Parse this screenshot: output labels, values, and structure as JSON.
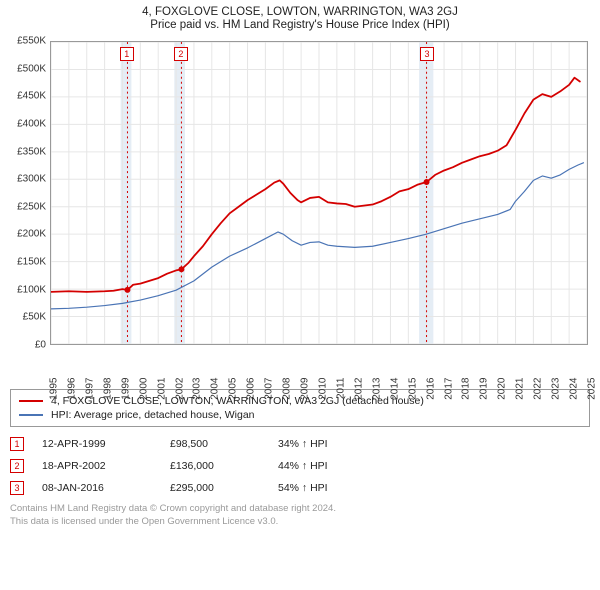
{
  "title_line1": "4, FOXGLOVE CLOSE, LOWTON, WARRINGTON, WA3 2GJ",
  "title_line2": "Price paid vs. HM Land Registry's House Price Index (HPI)",
  "chart": {
    "type": "line",
    "x_min": 1995,
    "x_max": 2025,
    "y_min": 0,
    "y_max": 550,
    "y_unit_prefix": "£",
    "y_unit_suffix": "K",
    "y_ticks": [
      0,
      50,
      100,
      150,
      200,
      250,
      300,
      350,
      400,
      450,
      500,
      550
    ],
    "x_ticks": [
      1995,
      1996,
      1997,
      1998,
      1999,
      2000,
      2001,
      2002,
      2003,
      2004,
      2005,
      2006,
      2007,
      2008,
      2009,
      2010,
      2011,
      2012,
      2013,
      2014,
      2015,
      2016,
      2017,
      2018,
      2019,
      2020,
      2021,
      2022,
      2023,
      2024,
      2025
    ],
    "background_color": "#ffffff",
    "grid_color": "#e6e6e6",
    "axis_color": "#999999",
    "tick_fontsize": 10,
    "vbands": [
      {
        "from": 1998.9,
        "to": 1999.5,
        "fill": "#e5edf5"
      },
      {
        "from": 2001.9,
        "to": 2002.5,
        "fill": "#e5edf5"
      },
      {
        "from": 2015.6,
        "to": 2016.4,
        "fill": "#e5edf5"
      }
    ],
    "vlines": [
      {
        "x": 1999.28,
        "color": "#d40000",
        "dash": "2,3"
      },
      {
        "x": 2002.3,
        "color": "#d40000",
        "dash": "2,3"
      },
      {
        "x": 2016.02,
        "color": "#d40000",
        "dash": "2,3"
      }
    ],
    "markers": [
      {
        "label": "1",
        "x": 1999.28,
        "color": "#d40000"
      },
      {
        "label": "2",
        "x": 2002.3,
        "color": "#d40000"
      },
      {
        "label": "3",
        "x": 2016.02,
        "color": "#d40000"
      }
    ],
    "series": [
      {
        "name": "price_paid",
        "color": "#d40000",
        "width": 1.8,
        "points": [
          [
            1995,
            95
          ],
          [
            1996,
            96
          ],
          [
            1997,
            95
          ],
          [
            1998,
            96
          ],
          [
            1998.5,
            97
          ],
          [
            1999.0,
            100
          ],
          [
            1999.28,
            98.5
          ],
          [
            1999.6,
            108
          ],
          [
            2000,
            110
          ],
          [
            2000.5,
            115
          ],
          [
            2001,
            120
          ],
          [
            2001.5,
            128
          ],
          [
            2002,
            134
          ],
          [
            2002.3,
            136
          ],
          [
            2002.7,
            148
          ],
          [
            2003,
            160
          ],
          [
            2003.5,
            178
          ],
          [
            2004,
            200
          ],
          [
            2004.5,
            220
          ],
          [
            2005,
            238
          ],
          [
            2005.5,
            250
          ],
          [
            2006,
            262
          ],
          [
            2006.5,
            272
          ],
          [
            2007,
            282
          ],
          [
            2007.5,
            294
          ],
          [
            2007.8,
            298
          ],
          [
            2008,
            292
          ],
          [
            2008.4,
            275
          ],
          [
            2008.8,
            262
          ],
          [
            2009,
            258
          ],
          [
            2009.5,
            266
          ],
          [
            2010,
            268
          ],
          [
            2010.5,
            258
          ],
          [
            2011,
            256
          ],
          [
            2011.5,
            255
          ],
          [
            2012,
            250
          ],
          [
            2012.5,
            252
          ],
          [
            2013,
            254
          ],
          [
            2013.5,
            260
          ],
          [
            2014,
            268
          ],
          [
            2014.5,
            278
          ],
          [
            2015,
            282
          ],
          [
            2015.5,
            290
          ],
          [
            2016.02,
            295
          ],
          [
            2016.5,
            308
          ],
          [
            2017,
            316
          ],
          [
            2017.5,
            322
          ],
          [
            2018,
            330
          ],
          [
            2018.5,
            336
          ],
          [
            2019,
            342
          ],
          [
            2019.5,
            346
          ],
          [
            2020,
            352
          ],
          [
            2020.5,
            362
          ],
          [
            2021,
            390
          ],
          [
            2021.5,
            420
          ],
          [
            2022,
            445
          ],
          [
            2022.5,
            455
          ],
          [
            2023,
            450
          ],
          [
            2023.5,
            460
          ],
          [
            2024,
            472
          ],
          [
            2024.3,
            485
          ],
          [
            2024.6,
            478
          ]
        ],
        "dots": [
          {
            "x": 1999.28,
            "y": 98.5
          },
          {
            "x": 2002.3,
            "y": 136
          },
          {
            "x": 2016.02,
            "y": 295
          }
        ]
      },
      {
        "name": "hpi",
        "color": "#4a74b5",
        "width": 1.2,
        "points": [
          [
            1995,
            64
          ],
          [
            1996,
            65
          ],
          [
            1997,
            67
          ],
          [
            1998,
            70
          ],
          [
            1999,
            74
          ],
          [
            2000,
            80
          ],
          [
            2001,
            88
          ],
          [
            2002,
            98
          ],
          [
            2003,
            115
          ],
          [
            2004,
            140
          ],
          [
            2005,
            160
          ],
          [
            2006,
            175
          ],
          [
            2007,
            192
          ],
          [
            2007.7,
            204
          ],
          [
            2008,
            200
          ],
          [
            2008.5,
            188
          ],
          [
            2009,
            180
          ],
          [
            2009.5,
            185
          ],
          [
            2010,
            186
          ],
          [
            2010.5,
            180
          ],
          [
            2011,
            178
          ],
          [
            2012,
            176
          ],
          [
            2013,
            178
          ],
          [
            2014,
            185
          ],
          [
            2015,
            192
          ],
          [
            2016,
            200
          ],
          [
            2017,
            210
          ],
          [
            2018,
            220
          ],
          [
            2019,
            228
          ],
          [
            2020,
            236
          ],
          [
            2020.7,
            245
          ],
          [
            2021,
            260
          ],
          [
            2021.5,
            278
          ],
          [
            2022,
            298
          ],
          [
            2022.5,
            306
          ],
          [
            2023,
            302
          ],
          [
            2023.5,
            308
          ],
          [
            2024,
            318
          ],
          [
            2024.5,
            326
          ],
          [
            2024.8,
            330
          ]
        ]
      }
    ]
  },
  "legend": {
    "rows": [
      {
        "color": "#d40000",
        "label": "4, FOXGLOVE CLOSE, LOWTON, WARRINGTON, WA3 2GJ (detached house)"
      },
      {
        "color": "#4a74b5",
        "label": "HPI: Average price, detached house, Wigan"
      }
    ]
  },
  "events": [
    {
      "n": "1",
      "date": "12-APR-1999",
      "price": "£98,500",
      "delta": "34% ↑ HPI"
    },
    {
      "n": "2",
      "date": "18-APR-2002",
      "price": "£136,000",
      "delta": "44% ↑ HPI"
    },
    {
      "n": "3",
      "date": "08-JAN-2016",
      "price": "£295,000",
      "delta": "54% ↑ HPI"
    }
  ],
  "footer_line1": "Contains HM Land Registry data © Crown copyright and database right 2024.",
  "footer_line2": "This data is licensed under the Open Government Licence v3.0."
}
